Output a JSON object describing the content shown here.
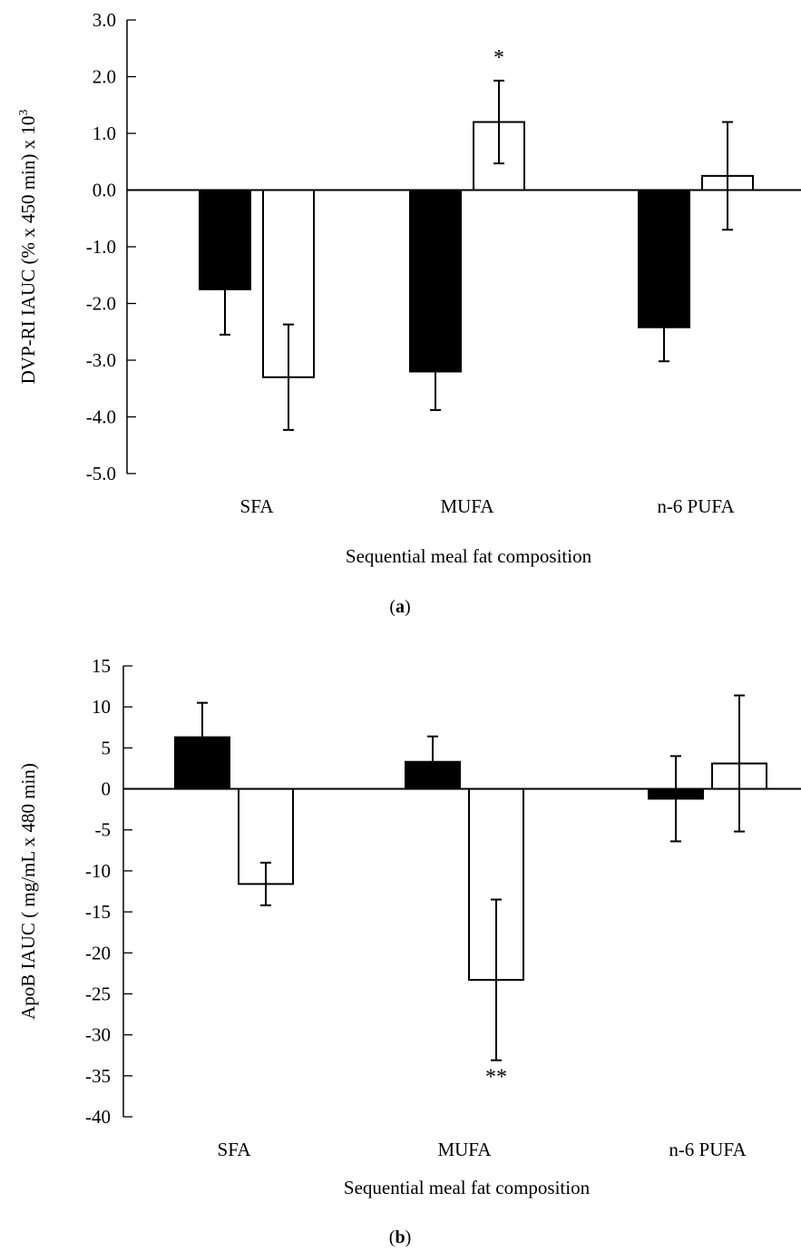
{
  "chart_data": [
    {
      "type": "bar",
      "panel_label": "a",
      "categories": [
        "SFA",
        "MUFA",
        "n-6 PUFA"
      ],
      "series": [
        {
          "fill": "#000000",
          "values": [
            -1.75,
            -3.2,
            -2.42
          ],
          "errors": [
            0.8,
            0.68,
            0.6
          ]
        },
        {
          "fill": "#ffffff",
          "values": [
            -3.3,
            1.2,
            0.25
          ],
          "errors": [
            0.93,
            0.73,
            0.95
          ]
        }
      ],
      "ylabel": "DVP-RI IAUC (% x 450 min) x 10",
      "ylabel_sup": "3",
      "xlabel": "Sequential meal fat composition",
      "ylim": [
        -5.0,
        3.0
      ],
      "yticks": [
        3.0,
        2.0,
        1.0,
        0.0,
        -1.0,
        -2.0,
        -3.0,
        -4.0,
        -5.0
      ],
      "ytick_labels": [
        "3.0",
        "2.0",
        "1.0",
        "0.0",
        "-1.0",
        "-2.0",
        "-3.0",
        "-4.0",
        "-5.0"
      ],
      "annotations": [
        {
          "text": "*",
          "category": 1,
          "series": 1
        }
      ]
    },
    {
      "type": "bar",
      "panel_label": "b",
      "categories": [
        "SFA",
        "MUFA",
        "n-6 PUFA"
      ],
      "series": [
        {
          "fill": "#000000",
          "values": [
            6.3,
            3.3,
            -1.2
          ],
          "errors": [
            4.2,
            3.1,
            5.2
          ]
        },
        {
          "fill": "#ffffff",
          "values": [
            -11.6,
            -23.3,
            3.1
          ],
          "errors": [
            2.6,
            9.8,
            8.3
          ]
        }
      ],
      "ylabel": "ApoB IAUC ( mg/mL x 480 min)",
      "ylabel_sup": "",
      "xlabel": "Sequential meal fat composition",
      "ylim": [
        -40,
        15
      ],
      "yticks": [
        15,
        10,
        5,
        0,
        -5,
        -10,
        -15,
        -20,
        -25,
        -30,
        -35,
        -40
      ],
      "ytick_labels": [
        "15",
        "10",
        "5",
        "0",
        "-5",
        "-10",
        "-15",
        "-20",
        "-25",
        "-30",
        "-35",
        "-40"
      ],
      "annotations": [
        {
          "text": "**",
          "category": 1,
          "series": 1
        }
      ]
    }
  ]
}
